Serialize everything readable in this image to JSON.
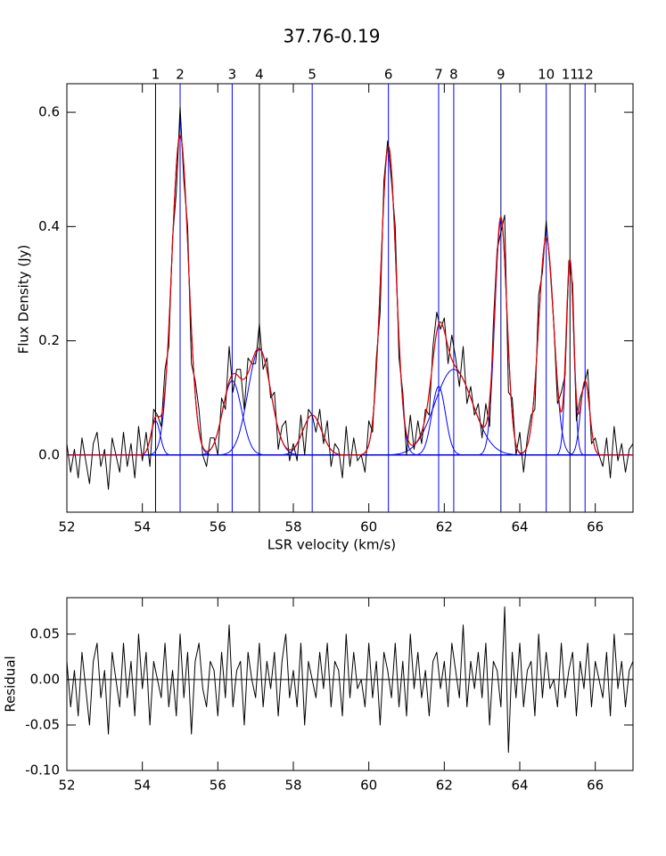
{
  "chart_data": [
    {
      "type": "spectrum",
      "title": "37.76-0.19",
      "xlabel": "LSR velocity (km/s)",
      "ylabel": "Flux Density (Jy)",
      "xlim": [
        52,
        67
      ],
      "xticks": [
        52,
        54,
        56,
        58,
        60,
        62,
        64,
        66
      ],
      "ylim": [
        -0.1,
        0.65
      ],
      "yticks": [
        {
          "value": 0,
          "label": "0.0"
        },
        0.2,
        0.4,
        0.6
      ],
      "x": [
        52.0,
        52.1,
        52.2,
        52.3,
        52.4,
        52.5,
        52.6,
        52.7,
        52.8,
        52.9,
        53.0,
        53.1,
        53.2,
        53.3,
        53.4,
        53.5,
        53.6,
        53.7,
        53.8,
        53.9,
        54.0,
        54.1,
        54.2,
        54.3,
        54.4,
        54.5,
        54.6,
        54.7,
        54.8,
        54.9,
        55.0,
        55.1,
        55.2,
        55.3,
        55.4,
        55.5,
        55.6,
        55.7,
        55.8,
        55.9,
        56.0,
        56.1,
        56.2,
        56.3,
        56.4,
        56.5,
        56.6,
        56.7,
        56.8,
        56.9,
        57.0,
        57.1,
        57.2,
        57.3,
        57.4,
        57.5,
        57.6,
        57.7,
        57.8,
        57.9,
        58.0,
        58.1,
        58.2,
        58.3,
        58.4,
        58.5,
        58.6,
        58.7,
        58.8,
        58.9,
        59.0,
        59.1,
        59.2,
        59.3,
        59.4,
        59.5,
        59.6,
        59.7,
        59.8,
        59.9,
        60.0,
        60.1,
        60.2,
        60.3,
        60.4,
        60.5,
        60.6,
        60.7,
        60.8,
        60.9,
        61.0,
        61.1,
        61.2,
        61.3,
        61.4,
        61.5,
        61.6,
        61.7,
        61.8,
        61.9,
        62.0,
        62.1,
        62.2,
        62.3,
        62.4,
        62.5,
        62.6,
        62.7,
        62.8,
        62.9,
        63.0,
        63.1,
        63.2,
        63.3,
        63.4,
        63.5,
        63.6,
        63.7,
        63.8,
        63.9,
        64.0,
        64.1,
        64.2,
        64.3,
        64.4,
        64.5,
        64.6,
        64.7,
        64.8,
        64.9,
        65.0,
        65.1,
        65.2,
        65.3,
        65.4,
        65.5,
        65.6,
        65.7,
        65.8,
        65.9,
        66.0,
        66.1,
        66.2,
        66.3,
        66.4,
        66.5,
        66.6,
        66.7,
        66.8,
        66.9,
        67.0
      ],
      "series": [
        {
          "color": "#000000",
          "values": [
            0.02,
            -0.03,
            0.01,
            -0.04,
            0.03,
            -0.01,
            -0.05,
            0.02,
            0.04,
            -0.02,
            0.01,
            -0.06,
            0.03,
            0.0,
            -0.03,
            0.04,
            -0.02,
            0.02,
            -0.04,
            0.05,
            -0.01,
            0.04,
            -0.02,
            0.08,
            0.07,
            0.05,
            0.15,
            0.19,
            0.38,
            0.46,
            0.61,
            0.48,
            0.4,
            0.16,
            0.13,
            0.08,
            0.0,
            -0.02,
            0.03,
            0.03,
            0.0,
            0.1,
            0.08,
            0.19,
            0.11,
            0.15,
            0.15,
            0.08,
            0.17,
            0.16,
            0.16,
            0.23,
            0.15,
            0.17,
            0.1,
            0.11,
            0.01,
            0.05,
            0.06,
            -0.01,
            0.02,
            -0.01,
            0.07,
            0.0,
            0.08,
            0.07,
            0.04,
            0.08,
            0.02,
            0.06,
            -0.02,
            0.02,
            0.01,
            -0.04,
            0.05,
            -0.02,
            0.03,
            -0.01,
            0.0,
            -0.03,
            0.06,
            0.04,
            0.17,
            0.25,
            0.48,
            0.55,
            0.48,
            0.4,
            0.17,
            0.11,
            0.0,
            0.07,
            0.01,
            0.06,
            0.02,
            0.08,
            0.07,
            0.19,
            0.25,
            0.22,
            0.24,
            0.16,
            0.21,
            0.17,
            0.12,
            0.19,
            0.09,
            0.12,
            0.07,
            0.09,
            0.03,
            0.09,
            0.05,
            0.23,
            0.36,
            0.39,
            0.42,
            0.11,
            0.1,
            0.0,
            0.04,
            -0.03,
            0.03,
            0.07,
            0.08,
            0.28,
            0.32,
            0.41,
            0.33,
            0.23,
            0.09,
            0.11,
            0.14,
            0.34,
            0.3,
            0.06,
            0.1,
            0.12,
            0.15,
            0.02,
            0.03,
            0.0,
            -0.02,
            0.03,
            -0.04,
            0.05,
            -0.01,
            0.02,
            -0.03,
            0.01,
            0.02
          ]
        }
      ],
      "fit_color": "#e00000",
      "component_color": "#0000ff",
      "components": [
        {
          "label": "1",
          "center": 54.35,
          "amplitude": 0.06,
          "sigma": 0.12,
          "color": "#000000"
        },
        {
          "label": "2",
          "center": 55.0,
          "amplitude": 0.56,
          "sigma": 0.22,
          "color": "#0000ff"
        },
        {
          "label": "3",
          "center": 56.38,
          "amplitude": 0.13,
          "sigma": 0.25,
          "color": "#0000ff"
        },
        {
          "label": "4",
          "center": 57.1,
          "amplitude": 0.185,
          "sigma": 0.3,
          "color": "#000000"
        },
        {
          "label": "5",
          "center": 58.5,
          "amplitude": 0.07,
          "sigma": 0.25,
          "color": "#0000ff"
        },
        {
          "label": "6",
          "center": 60.52,
          "amplitude": 0.54,
          "sigma": 0.2,
          "color": "#0000ff"
        },
        {
          "label": "7",
          "center": 61.85,
          "amplitude": 0.12,
          "sigma": 0.18,
          "color": "#0000ff"
        },
        {
          "label": "8",
          "center": 62.25,
          "amplitude": 0.15,
          "sigma": 0.5,
          "color": "#0000ff"
        },
        {
          "label": "9",
          "center": 63.5,
          "amplitude": 0.41,
          "sigma": 0.16,
          "color": "#000080"
        },
        {
          "label": "10",
          "center": 64.7,
          "amplitude": 0.38,
          "sigma": 0.2,
          "color": "#0000ff"
        },
        {
          "label": "11",
          "center": 65.33,
          "amplitude": 0.34,
          "sigma": 0.1,
          "color": "#000000"
        },
        {
          "label": "12",
          "center": 65.73,
          "amplitude": 0.13,
          "sigma": 0.12,
          "color": "#0000ff"
        }
      ]
    },
    {
      "type": "line",
      "ylabel": "Residual",
      "xlim": [
        52,
        67
      ],
      "xticks": [
        52,
        54,
        56,
        58,
        60,
        62,
        64,
        66
      ],
      "ylim": [
        -0.1,
        0.09
      ],
      "yticks": [
        {
          "value": -0.1,
          "label": "-0.10"
        },
        -0.05,
        {
          "value": 0,
          "label": "0.00"
        },
        0.05
      ],
      "x": [
        52.0,
        52.1,
        52.2,
        52.3,
        52.4,
        52.5,
        52.6,
        52.7,
        52.8,
        52.9,
        53.0,
        53.1,
        53.2,
        53.3,
        53.4,
        53.5,
        53.6,
        53.7,
        53.8,
        53.9,
        54.0,
        54.1,
        54.2,
        54.3,
        54.4,
        54.5,
        54.6,
        54.7,
        54.8,
        54.9,
        55.0,
        55.1,
        55.2,
        55.3,
        55.4,
        55.5,
        55.6,
        55.7,
        55.8,
        55.9,
        56.0,
        56.1,
        56.2,
        56.3,
        56.4,
        56.5,
        56.6,
        56.7,
        56.8,
        56.9,
        57.0,
        57.1,
        57.2,
        57.3,
        57.4,
        57.5,
        57.6,
        57.7,
        57.8,
        57.9,
        58.0,
        58.1,
        58.2,
        58.3,
        58.4,
        58.5,
        58.6,
        58.7,
        58.8,
        58.9,
        59.0,
        59.1,
        59.2,
        59.3,
        59.4,
        59.5,
        59.6,
        59.7,
        59.8,
        59.9,
        60.0,
        60.1,
        60.2,
        60.3,
        60.4,
        60.5,
        60.6,
        60.7,
        60.8,
        60.9,
        61.0,
        61.1,
        61.2,
        61.3,
        61.4,
        61.5,
        61.6,
        61.7,
        61.8,
        61.9,
        62.0,
        62.1,
        62.2,
        62.3,
        62.4,
        62.5,
        62.6,
        62.7,
        62.8,
        62.9,
        63.0,
        63.1,
        63.2,
        63.3,
        63.4,
        63.5,
        63.6,
        63.7,
        63.8,
        63.9,
        64.0,
        64.1,
        64.2,
        64.3,
        64.4,
        64.5,
        64.6,
        64.7,
        64.8,
        64.9,
        65.0,
        65.1,
        65.2,
        65.3,
        65.4,
        65.5,
        65.6,
        65.7,
        65.8,
        65.9,
        66.0,
        66.1,
        66.2,
        66.3,
        66.4,
        66.5,
        66.6,
        66.7,
        66.8,
        66.9,
        67.0
      ],
      "series": [
        {
          "color": "#000000",
          "values": [
            0.02,
            -0.03,
            0.01,
            -0.04,
            0.03,
            -0.01,
            -0.05,
            0.02,
            0.04,
            -0.02,
            0.01,
            -0.06,
            0.03,
            0.0,
            -0.03,
            0.04,
            -0.02,
            0.02,
            -0.04,
            0.05,
            -0.01,
            0.03,
            -0.05,
            0.02,
            0.0,
            -0.02,
            0.04,
            -0.03,
            0.01,
            -0.04,
            0.05,
            -0.02,
            0.03,
            -0.06,
            0.02,
            0.04,
            -0.01,
            -0.03,
            0.02,
            0.01,
            -0.04,
            0.03,
            -0.02,
            0.06,
            -0.03,
            0.01,
            0.02,
            -0.05,
            0.03,
            0.0,
            -0.02,
            0.04,
            -0.03,
            0.02,
            -0.01,
            0.03,
            -0.04,
            0.02,
            0.05,
            -0.02,
            0.01,
            -0.03,
            0.04,
            -0.05,
            0.02,
            0.0,
            -0.02,
            0.03,
            -0.01,
            0.04,
            -0.03,
            0.02,
            0.01,
            -0.04,
            0.05,
            -0.02,
            0.03,
            -0.01,
            0.0,
            -0.03,
            0.04,
            -0.02,
            0.02,
            -0.05,
            0.03,
            0.01,
            -0.02,
            0.04,
            -0.03,
            0.02,
            -0.04,
            0.05,
            -0.01,
            0.03,
            -0.02,
            0.01,
            -0.04,
            0.02,
            0.03,
            -0.01,
            0.02,
            -0.03,
            0.04,
            0.01,
            -0.02,
            0.06,
            -0.03,
            0.02,
            -0.01,
            0.03,
            -0.02,
            0.04,
            -0.05,
            0.02,
            0.01,
            -0.03,
            0.08,
            -0.08,
            0.03,
            -0.02,
            0.04,
            -0.03,
            0.01,
            0.02,
            -0.04,
            0.05,
            -0.02,
            0.03,
            -0.01,
            0.0,
            -0.03,
            0.04,
            -0.02,
            0.01,
            0.03,
            -0.04,
            0.02,
            -0.01,
            0.04,
            -0.03,
            0.02,
            0.0,
            -0.02,
            0.03,
            -0.04,
            0.05,
            -0.01,
            0.02,
            -0.03,
            0.01,
            0.02
          ]
        }
      ]
    }
  ]
}
